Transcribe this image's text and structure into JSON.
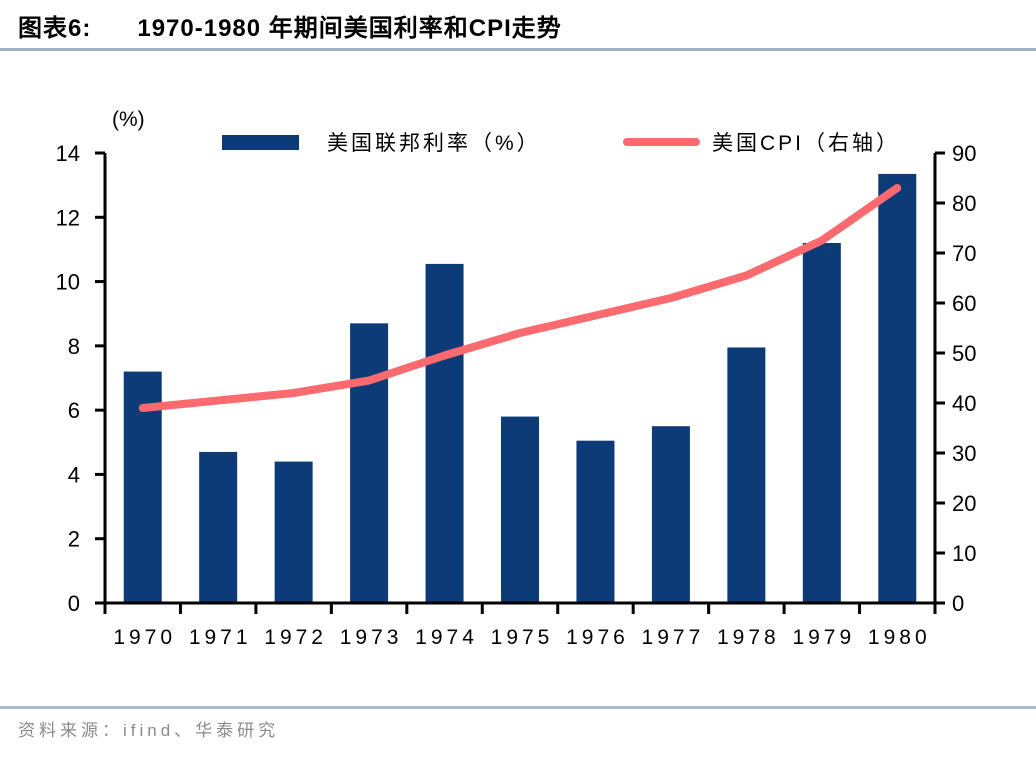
{
  "header": {
    "tag": "图表6:",
    "title": "1970-1980 年期间美国利率和CPI走势"
  },
  "chart_data": {
    "type": "bar",
    "subtype": "bar+line dual axis",
    "categories": [
      "1970",
      "1971",
      "1972",
      "1973",
      "1974",
      "1975",
      "1976",
      "1977",
      "1978",
      "1979",
      "1980"
    ],
    "series": [
      {
        "name": "美国联邦利率（%）",
        "type": "bar",
        "axis": "left",
        "color": "#0c3b78",
        "values": [
          7.2,
          4.7,
          4.4,
          8.7,
          10.55,
          5.8,
          5.05,
          5.5,
          7.95,
          11.2,
          13.35
        ]
      },
      {
        "name": "美国CPI（右轴）",
        "type": "line",
        "axis": "right",
        "color": "#fb6a6e",
        "values": [
          39,
          40.5,
          42,
          44.5,
          49.5,
          54,
          57.5,
          61,
          65.5,
          72.5,
          83
        ]
      }
    ],
    "left_axis": {
      "label": "(%)",
      "min": 0,
      "max": 14,
      "ticks": [
        0,
        2,
        4,
        6,
        8,
        10,
        12,
        14
      ]
    },
    "right_axis": {
      "min": 0,
      "max": 90,
      "ticks": [
        0,
        10,
        20,
        30,
        40,
        50,
        60,
        70,
        80,
        90
      ]
    },
    "grid": false,
    "legend_position": "top"
  },
  "footer": {
    "source": "资料来源：ifind、华泰研究"
  },
  "colors": {
    "bar": "#0c3b78",
    "line": "#fb6a6e",
    "axis": "#000000",
    "title_rule": "#9db3c8",
    "footer_rule": "#a9bdd1",
    "source_text": "#8b8b8b"
  }
}
